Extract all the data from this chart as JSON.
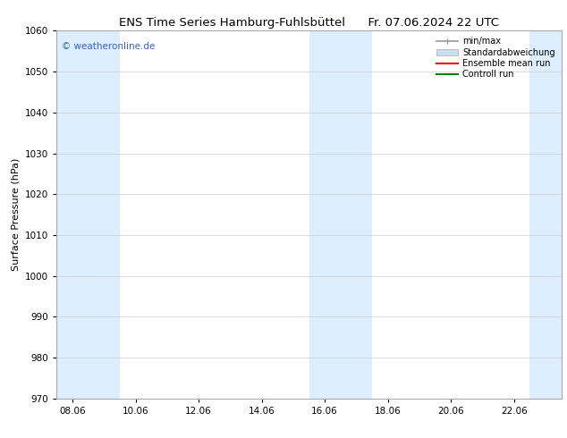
{
  "title_left": "ENS Time Series Hamburg-Fuhlsbüttel",
  "title_right": "Fr. 07.06.2024 22 UTC",
  "ylabel": "Surface Pressure (hPa)",
  "ylim": [
    970,
    1060
  ],
  "yticks": [
    970,
    980,
    990,
    1000,
    1010,
    1020,
    1030,
    1040,
    1050,
    1060
  ],
  "xtick_labels": [
    "08.06",
    "10.06",
    "12.06",
    "14.06",
    "16.06",
    "18.06",
    "20.06",
    "22.06"
  ],
  "xtick_positions": [
    0,
    2,
    4,
    6,
    8,
    10,
    12,
    14
  ],
  "xlim": [
    -0.5,
    15.5
  ],
  "shaded_bands": [
    {
      "x_start": -0.5,
      "x_end": 1.5
    },
    {
      "x_start": 7.5,
      "x_end": 9.5
    },
    {
      "x_start": 14.5,
      "x_end": 15.5
    }
  ],
  "shaded_color": "#ddeeff",
  "watermark_text": "© weatheronline.de",
  "watermark_color": "#3366bb",
  "legend_items": [
    {
      "label": "min/max",
      "color": "#999999",
      "lw": 1.2,
      "style": "errorbar"
    },
    {
      "label": "Standardabweichung",
      "color": "#ccddf0",
      "lw": 6,
      "style": "band"
    },
    {
      "label": "Ensemble mean run",
      "color": "red",
      "lw": 1.5,
      "style": "line"
    },
    {
      "label": "Controll run",
      "color": "green",
      "lw": 1.5,
      "style": "line"
    }
  ],
  "bg_color": "#ffffff",
  "grid_color": "#cccccc",
  "title_fontsize": 9.5,
  "axis_label_fontsize": 8,
  "tick_fontsize": 7.5,
  "watermark_fontsize": 7.5,
  "legend_fontsize": 7.0
}
